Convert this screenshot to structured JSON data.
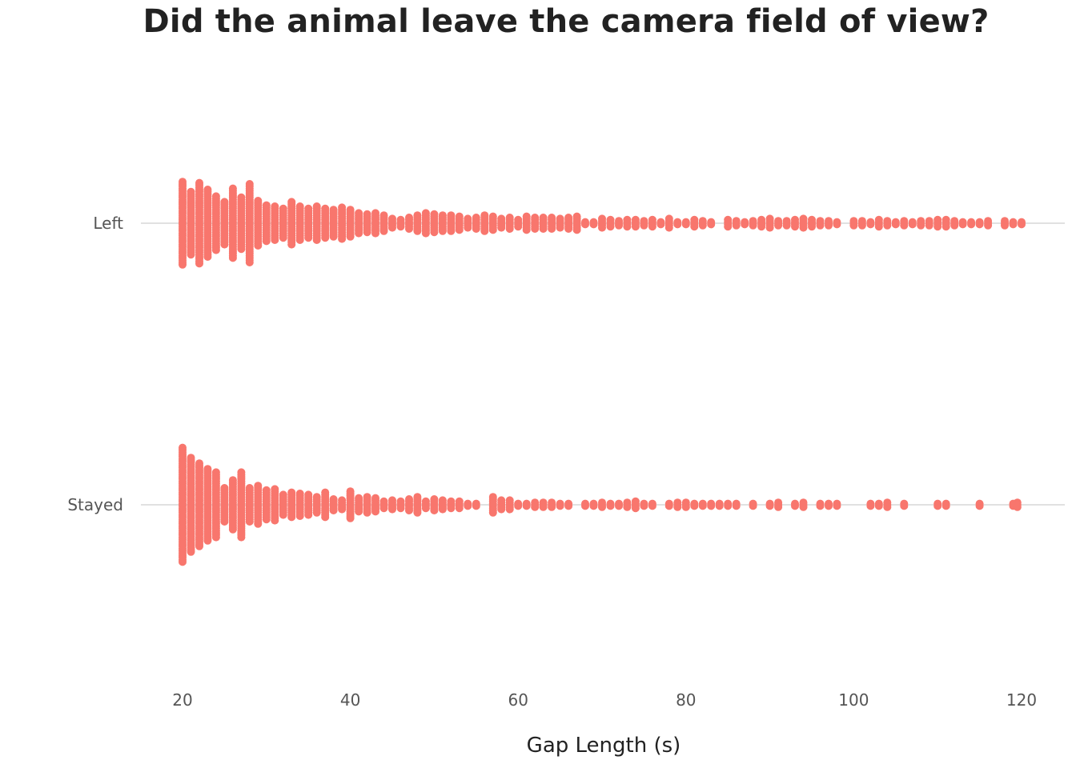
{
  "chart_data": {
    "type": "scatter",
    "subtype": "dot-strip (beeswarm)",
    "title": "Did the animal leave the camera field of view?",
    "xlabel": "Gap Length (s)",
    "ylabel": "",
    "xlim": [
      15,
      125
    ],
    "x_ticks": [
      "20",
      "40",
      "60",
      "80",
      "100",
      "120"
    ],
    "categories": [
      "Left",
      "Stayed"
    ],
    "grid": false,
    "color": "#f8766d",
    "series": [
      {
        "name": "Left",
        "points": [
          [
            20,
            38
          ],
          [
            21,
            29
          ],
          [
            22,
            37
          ],
          [
            23,
            31
          ],
          [
            24,
            25
          ],
          [
            25,
            20
          ],
          [
            26,
            32
          ],
          [
            27,
            24
          ],
          [
            28,
            36
          ],
          [
            29,
            21
          ],
          [
            30,
            17
          ],
          [
            31,
            16
          ],
          [
            32,
            14
          ],
          [
            33,
            20
          ],
          [
            34,
            16
          ],
          [
            35,
            14
          ],
          [
            36,
            16
          ],
          [
            37,
            14
          ],
          [
            38,
            13
          ],
          [
            39,
            15
          ],
          [
            40,
            13
          ],
          [
            41,
            10
          ],
          [
            42,
            9
          ],
          [
            43,
            10
          ],
          [
            44,
            8
          ],
          [
            45,
            5
          ],
          [
            46,
            4
          ],
          [
            47,
            6
          ],
          [
            48,
            8
          ],
          [
            49,
            10
          ],
          [
            50,
            9
          ],
          [
            51,
            8
          ],
          [
            52,
            8
          ],
          [
            53,
            7
          ],
          [
            54,
            5
          ],
          [
            55,
            6
          ],
          [
            56,
            8
          ],
          [
            57,
            7
          ],
          [
            58,
            5
          ],
          [
            59,
            6
          ],
          [
            60,
            4
          ],
          [
            61,
            7
          ],
          [
            62,
            6
          ],
          [
            63,
            6
          ],
          [
            64,
            6
          ],
          [
            65,
            5
          ],
          [
            66,
            6
          ],
          [
            67,
            7
          ],
          [
            68,
            2
          ],
          [
            69,
            2
          ],
          [
            70,
            5
          ],
          [
            71,
            4
          ],
          [
            72,
            3
          ],
          [
            73,
            4
          ],
          [
            74,
            4
          ],
          [
            75,
            3
          ],
          [
            76,
            4
          ],
          [
            77,
            2
          ],
          [
            78,
            5
          ],
          [
            79,
            2
          ],
          [
            80,
            2
          ],
          [
            81,
            4
          ],
          [
            82,
            3
          ],
          [
            83,
            2
          ],
          [
            85,
            4
          ],
          [
            86,
            3
          ],
          [
            87,
            2
          ],
          [
            88,
            3
          ],
          [
            89,
            4
          ],
          [
            90,
            5
          ],
          [
            91,
            3
          ],
          [
            92,
            3
          ],
          [
            93,
            4
          ],
          [
            94,
            5
          ],
          [
            95,
            4
          ],
          [
            96,
            3
          ],
          [
            97,
            3
          ],
          [
            98,
            2
          ],
          [
            100,
            3
          ],
          [
            101,
            3
          ],
          [
            102,
            2
          ],
          [
            103,
            4
          ],
          [
            104,
            3
          ],
          [
            105,
            2
          ],
          [
            106,
            3
          ],
          [
            107,
            2
          ],
          [
            108,
            3
          ],
          [
            109,
            3
          ],
          [
            110,
            4
          ],
          [
            111,
            4
          ],
          [
            112,
            3
          ],
          [
            113,
            2
          ],
          [
            114,
            2
          ],
          [
            115,
            2
          ],
          [
            116,
            3
          ],
          [
            118,
            3
          ],
          [
            119,
            2
          ],
          [
            120,
            2
          ]
        ]
      },
      {
        "name": "Stayed",
        "points": [
          [
            20,
            52
          ],
          [
            21,
            43
          ],
          [
            22,
            38
          ],
          [
            23,
            33
          ],
          [
            24,
            30
          ],
          [
            25,
            16
          ],
          [
            26,
            23
          ],
          [
            27,
            30
          ],
          [
            28,
            16
          ],
          [
            29,
            18
          ],
          [
            30,
            14
          ],
          [
            31,
            15
          ],
          [
            32,
            10
          ],
          [
            33,
            12
          ],
          [
            34,
            11
          ],
          [
            35,
            10
          ],
          [
            36,
            8
          ],
          [
            37,
            12
          ],
          [
            38,
            6
          ],
          [
            39,
            5
          ],
          [
            40,
            13
          ],
          [
            41,
            7
          ],
          [
            42,
            8
          ],
          [
            43,
            7
          ],
          [
            44,
            4
          ],
          [
            45,
            5
          ],
          [
            46,
            4
          ],
          [
            47,
            6
          ],
          [
            48,
            8
          ],
          [
            49,
            4
          ],
          [
            50,
            6
          ],
          [
            51,
            5
          ],
          [
            52,
            4
          ],
          [
            53,
            4
          ],
          [
            54,
            2
          ],
          [
            55,
            2
          ],
          [
            57,
            8
          ],
          [
            58,
            5
          ],
          [
            59,
            5
          ],
          [
            60,
            2
          ],
          [
            61,
            2
          ],
          [
            62,
            3
          ],
          [
            63,
            3
          ],
          [
            64,
            3
          ],
          [
            65,
            2
          ],
          [
            66,
            2
          ],
          [
            68,
            2
          ],
          [
            69,
            2
          ],
          [
            70,
            3
          ],
          [
            71,
            2
          ],
          [
            72,
            2
          ],
          [
            73,
            3
          ],
          [
            74,
            4
          ],
          [
            75,
            2
          ],
          [
            76,
            2
          ],
          [
            78,
            2
          ],
          [
            79,
            3
          ],
          [
            80,
            3
          ],
          [
            81,
            2
          ],
          [
            82,
            2
          ],
          [
            83,
            2
          ],
          [
            84,
            2
          ],
          [
            85,
            2
          ],
          [
            86,
            2
          ],
          [
            88,
            2
          ],
          [
            90,
            2
          ],
          [
            91,
            3
          ],
          [
            93,
            2
          ],
          [
            94,
            3
          ],
          [
            96,
            2
          ],
          [
            97,
            2
          ],
          [
            98,
            2
          ],
          [
            102,
            2
          ],
          [
            103,
            2
          ],
          [
            104,
            3
          ],
          [
            106,
            2
          ],
          [
            110,
            2
          ],
          [
            111,
            2
          ],
          [
            115,
            2
          ],
          [
            119,
            2
          ],
          [
            119.5,
            3
          ]
        ]
      }
    ]
  }
}
